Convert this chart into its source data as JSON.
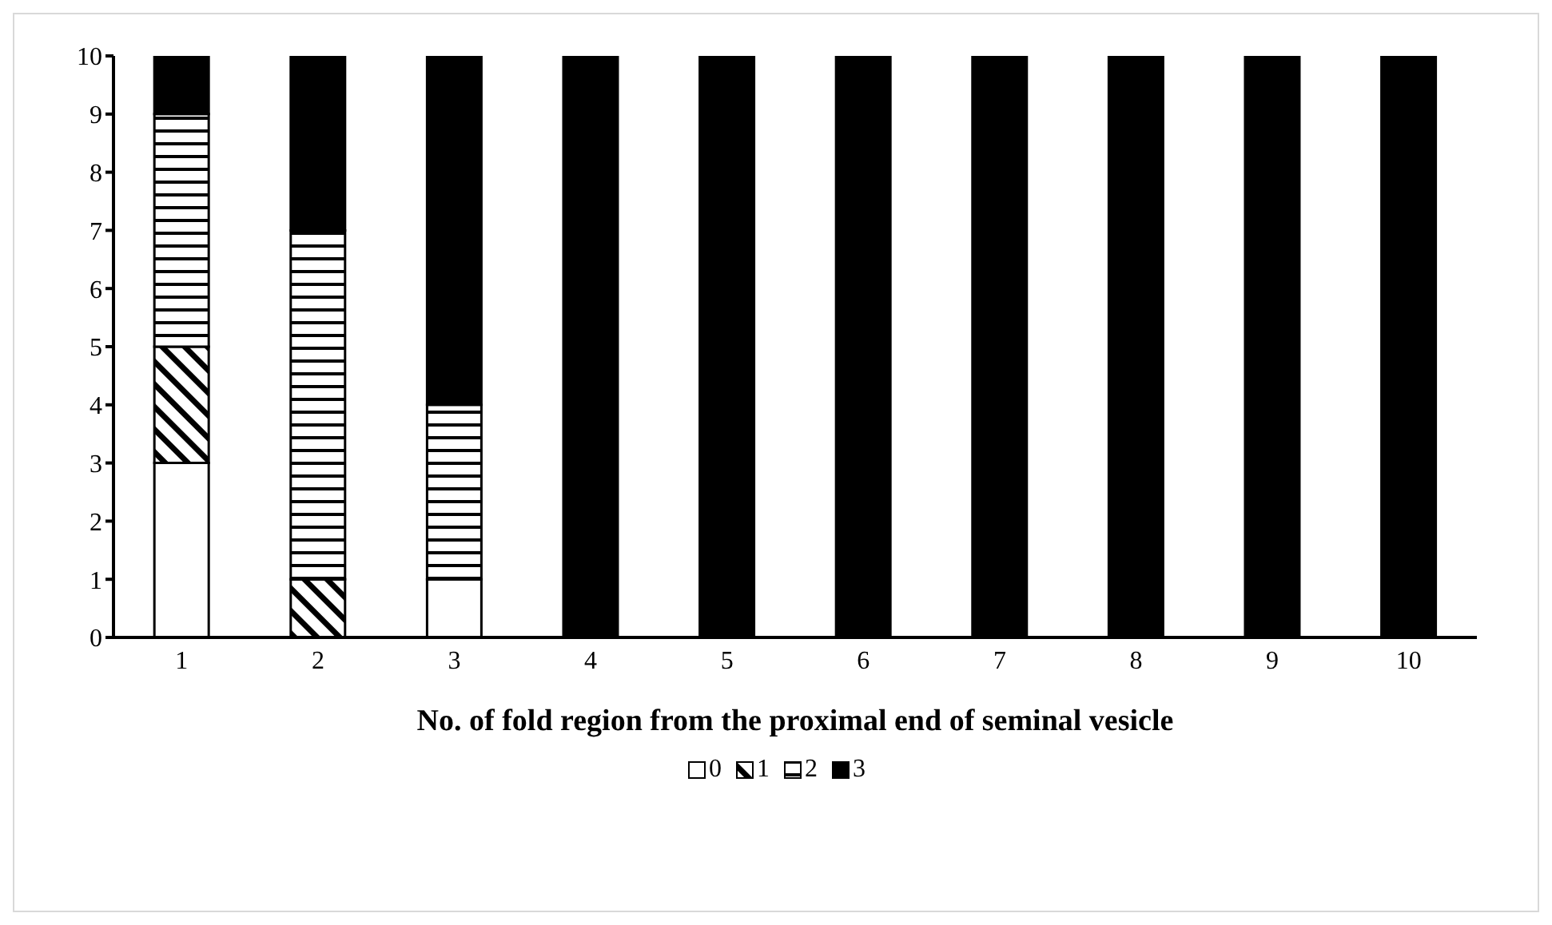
{
  "chart_data": {
    "type": "bar",
    "stacked": true,
    "xlabel": "No. of fold region from the proximal end of seminal vesicle",
    "categories": [
      "1",
      "2",
      "3",
      "4",
      "5",
      "6",
      "7",
      "8",
      "9",
      "10"
    ],
    "series": [
      {
        "name": "0",
        "color": "#ffffff",
        "values": [
          3,
          0,
          1,
          0,
          0,
          0,
          0,
          0,
          0,
          0
        ]
      },
      {
        "name": "1",
        "color": "#000000",
        "values": [
          2,
          1,
          0,
          0,
          0,
          0,
          0,
          0,
          0,
          0
        ]
      },
      {
        "name": "2",
        "color": "#000000",
        "values": [
          4,
          6,
          3,
          0,
          0,
          0,
          0,
          0,
          0,
          0
        ]
      },
      {
        "name": "3",
        "color": "#000000",
        "values": [
          1,
          3,
          6,
          10,
          10,
          10,
          10,
          10,
          10,
          10
        ]
      }
    ],
    "ylim": [
      0,
      10
    ],
    "yticks": [
      0,
      1,
      2,
      3,
      4,
      5,
      6,
      7,
      8,
      9,
      10
    ],
    "grid": false,
    "legend": "bottom"
  }
}
